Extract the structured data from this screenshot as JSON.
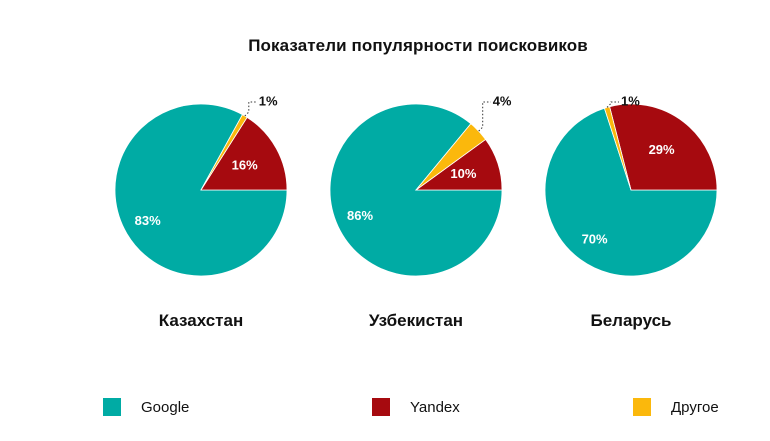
{
  "chart_data": {
    "type": "pie",
    "title": "Показатели популярности поисковиков",
    "legend_position": "bottom",
    "legend": [
      {
        "name": "Google",
        "color": "#00ABA4"
      },
      {
        "name": "Yandex",
        "color": "#A60A0F"
      },
      {
        "name": "Другое",
        "color": "#FBB80C"
      }
    ],
    "pies": [
      {
        "country": "Казахстан",
        "slices": [
          {
            "name": "Google",
            "value": 83,
            "label": "83%"
          },
          {
            "name": "Yandex",
            "value": 16,
            "label": "16%"
          },
          {
            "name": "Другое",
            "value": 1,
            "label": "1%"
          }
        ]
      },
      {
        "country": "Узбекистан",
        "slices": [
          {
            "name": "Google",
            "value": 86,
            "label": "86%"
          },
          {
            "name": "Yandex",
            "value": 10,
            "label": "10%"
          },
          {
            "name": "Другое",
            "value": 4,
            "label": "4%"
          }
        ]
      },
      {
        "country": "Беларусь",
        "slices": [
          {
            "name": "Google",
            "value": 70,
            "label": "70%"
          },
          {
            "name": "Yandex",
            "value": 29,
            "label": "29%"
          },
          {
            "name": "Другое",
            "value": 1,
            "label": "1%"
          }
        ]
      }
    ]
  }
}
